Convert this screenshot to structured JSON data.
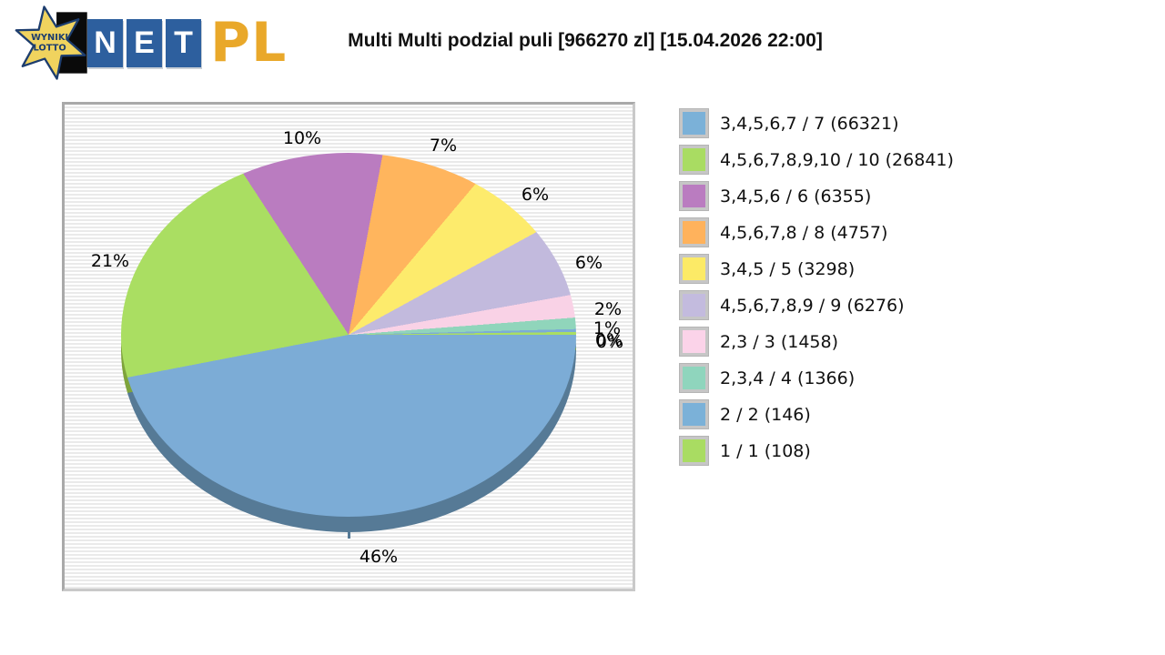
{
  "header": {
    "title": "Multi Multi podzial puli [966270 zl] [15.04.2026 22:00]",
    "logo": {
      "star_line1": "WYNIKI",
      "star_line2": "LOTTO",
      "net_letters": [
        "N",
        "E",
        "T"
      ],
      "pl": "PL",
      "star_fill": "#f0d35e",
      "star_outline": "#1d3d6e",
      "tile_color": "#2d5f9e",
      "pl_color": "#e9a82a"
    }
  },
  "chart_data": {
    "type": "pie",
    "title": "Multi Multi podzial puli [966270 zl] [15.04.2026 22:00]",
    "pool_zl": 966270,
    "draw_datetime": "15.04.2026 22:00",
    "legend_position": "right",
    "grid": "striped-background",
    "slices": [
      {
        "label": "3,4,5,6,7 / 7",
        "winners": 66321,
        "percent": 46,
        "percent_label": "46%",
        "color": "#7cacd6",
        "side_color": "#567a96"
      },
      {
        "label": "4,5,6,7,8,9,10 / 10",
        "winners": 26841,
        "percent": 21,
        "percent_label": "21%",
        "color": "#aade62",
        "side_color": "#7ea33c"
      },
      {
        "label": "3,4,5,6 / 6",
        "winners": 6355,
        "percent": 10,
        "percent_label": "10%",
        "color": "#ba7cc0"
      },
      {
        "label": "4,5,6,7,8 / 8",
        "winners": 4757,
        "percent": 7,
        "percent_label": "7%",
        "color": "#ffb55d"
      },
      {
        "label": "3,4,5 / 5",
        "winners": 3298,
        "percent": 6,
        "percent_label": "6%",
        "color": "#fdeb6c"
      },
      {
        "label": "4,5,6,7,8,9 / 9",
        "winners": 6276,
        "percent": 6,
        "percent_label": "6%",
        "color": "#c2badd"
      },
      {
        "label": "2,3 / 3",
        "winners": 1458,
        "percent": 2,
        "percent_label": "2%",
        "color": "#f9d2e6"
      },
      {
        "label": "2,3,4 / 4",
        "winners": 1366,
        "percent": 1,
        "percent_label": "1%",
        "color": "#90d5bb"
      },
      {
        "label": "2 / 2",
        "winners": 146,
        "percent": 0,
        "percent_label": "0%",
        "color": "#7cacd6"
      },
      {
        "label": "1 / 1",
        "winners": 108,
        "percent": 0,
        "percent_label": "0%",
        "color": "#aade62"
      }
    ]
  },
  "legend": {
    "items": [
      {
        "color": "#7bb1d8",
        "text": "3,4,5,6,7 / 7 (66321)"
      },
      {
        "color": "#a9dc62",
        "text": "4,5,6,7,8,9,10 / 10 (26841)"
      },
      {
        "color": "#ba7cc0",
        "text": "3,4,5,6 / 6 (6355)"
      },
      {
        "color": "#ffb25c",
        "text": "4,5,6,7,8 / 8 (4757)"
      },
      {
        "color": "#fcea66",
        "text": "3,4,5 / 5 (3298)"
      },
      {
        "color": "#c3bbde",
        "text": "4,5,6,7,8,9 / 9 (6276)"
      },
      {
        "color": "#fbd3e9",
        "text": "2,3 / 3 (1458)"
      },
      {
        "color": "#8fd5bd",
        "text": "2,3,4 / 4 (1366)"
      },
      {
        "color": "#7bb1d8",
        "text": "2 / 2 (146)"
      },
      {
        "color": "#a9dc62",
        "text": "1 / 1 (108)"
      }
    ]
  }
}
